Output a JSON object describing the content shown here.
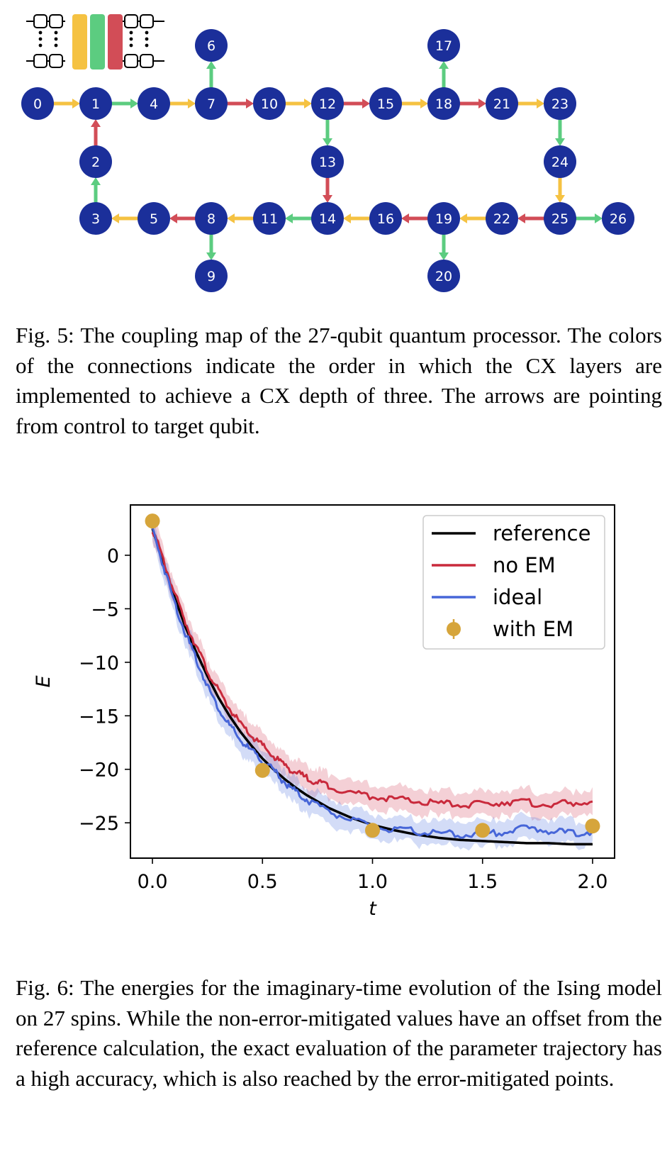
{
  "figure5": {
    "caption": "Fig. 5: The coupling map of the 27-qubit quantum processor. The colors of the connections indicate the order in which the CX layers are implemented to achieve a CX depth of three. The arrows are pointing from control to target qubit.",
    "colors": {
      "node": "#1b2f9a",
      "yellow": "#f5c242",
      "green": "#5ccc80",
      "red": "#d24d57"
    },
    "qubits": [
      "0",
      "1",
      "2",
      "3",
      "4",
      "5",
      "6",
      "7",
      "8",
      "9",
      "10",
      "11",
      "12",
      "13",
      "14",
      "15",
      "16",
      "17",
      "18",
      "19",
      "20",
      "21",
      "22",
      "23",
      "24",
      "25",
      "26"
    ],
    "couplings": [
      {
        "from": "0",
        "to": "1",
        "layer": "yellow"
      },
      {
        "from": "1",
        "to": "4",
        "layer": "green"
      },
      {
        "from": "4",
        "to": "7",
        "layer": "yellow"
      },
      {
        "from": "7",
        "to": "10",
        "layer": "red"
      },
      {
        "from": "10",
        "to": "12",
        "layer": "yellow"
      },
      {
        "from": "12",
        "to": "15",
        "layer": "red"
      },
      {
        "from": "15",
        "to": "18",
        "layer": "yellow"
      },
      {
        "from": "18",
        "to": "21",
        "layer": "red"
      },
      {
        "from": "21",
        "to": "23",
        "layer": "yellow"
      },
      {
        "from": "7",
        "to": "6",
        "layer": "green"
      },
      {
        "from": "18",
        "to": "17",
        "layer": "green"
      },
      {
        "from": "2",
        "to": "1",
        "layer": "red"
      },
      {
        "from": "3",
        "to": "2",
        "layer": "green"
      },
      {
        "from": "12",
        "to": "13",
        "layer": "green"
      },
      {
        "from": "13",
        "to": "14",
        "layer": "red"
      },
      {
        "from": "23",
        "to": "24",
        "layer": "green"
      },
      {
        "from": "24",
        "to": "25",
        "layer": "yellow"
      },
      {
        "from": "5",
        "to": "3",
        "layer": "yellow"
      },
      {
        "from": "8",
        "to": "5",
        "layer": "red"
      },
      {
        "from": "11",
        "to": "8",
        "layer": "yellow"
      },
      {
        "from": "14",
        "to": "11",
        "layer": "green"
      },
      {
        "from": "16",
        "to": "14",
        "layer": "yellow"
      },
      {
        "from": "19",
        "to": "16",
        "layer": "red"
      },
      {
        "from": "22",
        "to": "19",
        "layer": "yellow"
      },
      {
        "from": "25",
        "to": "22",
        "layer": "red"
      },
      {
        "from": "25",
        "to": "26",
        "layer": "green"
      },
      {
        "from": "8",
        "to": "9",
        "layer": "green"
      },
      {
        "from": "19",
        "to": "20",
        "layer": "green"
      }
    ],
    "layer_schematic": [
      "yellow",
      "green",
      "red"
    ]
  },
  "figure6": {
    "caption": "Fig. 6: The energies for the imaginary-time evolution of the Ising model on 27 spins. While the non-error-mitigated values have an offset from the reference calculation, the exact evaluation of the parameter trajectory has a high accuracy, which is also reached by the error-mitigated points.",
    "chart_data": {
      "type": "line",
      "xlabel": "t",
      "ylabel": "E",
      "xlim": [
        -0.1,
        2.1
      ],
      "ylim": [
        -28.3,
        4.7
      ],
      "xticks": [
        "0.0",
        "0.5",
        "1.0",
        "1.5",
        "2.0"
      ],
      "yticks": [
        "0",
        "−5",
        "−10",
        "−15",
        "−20",
        "−25"
      ],
      "grid": false,
      "legend_position": "top-right",
      "series": [
        {
          "name": "reference",
          "color": "#000000",
          "x": [
            0.0,
            0.05,
            0.1,
            0.15,
            0.2,
            0.25,
            0.3,
            0.35,
            0.4,
            0.45,
            0.5,
            0.55,
            0.6,
            0.65,
            0.7,
            0.8,
            0.9,
            1.0,
            1.1,
            1.2,
            1.3,
            1.4,
            1.5,
            1.6,
            1.7,
            1.8,
            1.9,
            2.0
          ],
          "y": [
            2.5,
            -0.8,
            -3.9,
            -6.7,
            -9.1,
            -11.3,
            -13.3,
            -15.0,
            -16.5,
            -17.8,
            -19.0,
            -20.0,
            -20.9,
            -21.7,
            -22.4,
            -23.6,
            -24.5,
            -25.2,
            -25.7,
            -26.1,
            -26.4,
            -26.6,
            -26.7,
            -26.8,
            -26.9,
            -26.9,
            -27.0,
            -27.0
          ]
        },
        {
          "name": "no EM",
          "color": "#c92a3c",
          "x": [
            0.0,
            0.05,
            0.1,
            0.15,
            0.2,
            0.25,
            0.3,
            0.35,
            0.4,
            0.45,
            0.5,
            0.55,
            0.6,
            0.65,
            0.7,
            0.75,
            0.8,
            0.9,
            1.0,
            1.1,
            1.2,
            1.3,
            1.4,
            1.5,
            1.6,
            1.7,
            1.8,
            1.9,
            2.0
          ],
          "y": [
            2.5,
            -0.5,
            -3.5,
            -6.3,
            -8.5,
            -10.8,
            -12.7,
            -14.3,
            -15.8,
            -16.9,
            -17.8,
            -18.8,
            -19.6,
            -20.3,
            -20.8,
            -21.2,
            -21.5,
            -22.2,
            -22.5,
            -22.8,
            -23.0,
            -23.2,
            -23.3,
            -23.3,
            -23.0,
            -23.1,
            -23.3,
            -23.2,
            -23.0
          ]
        },
        {
          "name": "ideal",
          "color": "#4766d8",
          "x": [
            0.0,
            0.05,
            0.1,
            0.15,
            0.2,
            0.25,
            0.3,
            0.35,
            0.4,
            0.45,
            0.5,
            0.55,
            0.6,
            0.65,
            0.7,
            0.8,
            0.9,
            1.0,
            1.1,
            1.2,
            1.3,
            1.4,
            1.5,
            1.6,
            1.7,
            1.8,
            1.9,
            2.0
          ],
          "y": [
            2.5,
            -1.0,
            -4.4,
            -7.3,
            -9.8,
            -12.2,
            -14.3,
            -15.9,
            -17.3,
            -18.3,
            -19.2,
            -20.1,
            -21.2,
            -22.1,
            -22.8,
            -23.9,
            -24.7,
            -25.4,
            -25.7,
            -25.8,
            -26.0,
            -26.1,
            -26.1,
            -25.8,
            -25.5,
            -25.7,
            -26.0,
            -25.8
          ]
        },
        {
          "name": "with EM",
          "color": "#d6a53b",
          "x": [
            0.0,
            0.5,
            1.0,
            1.5,
            2.0
          ],
          "y": [
            3.2,
            -20.1,
            -25.7,
            -25.7,
            -25.3
          ]
        }
      ]
    }
  }
}
